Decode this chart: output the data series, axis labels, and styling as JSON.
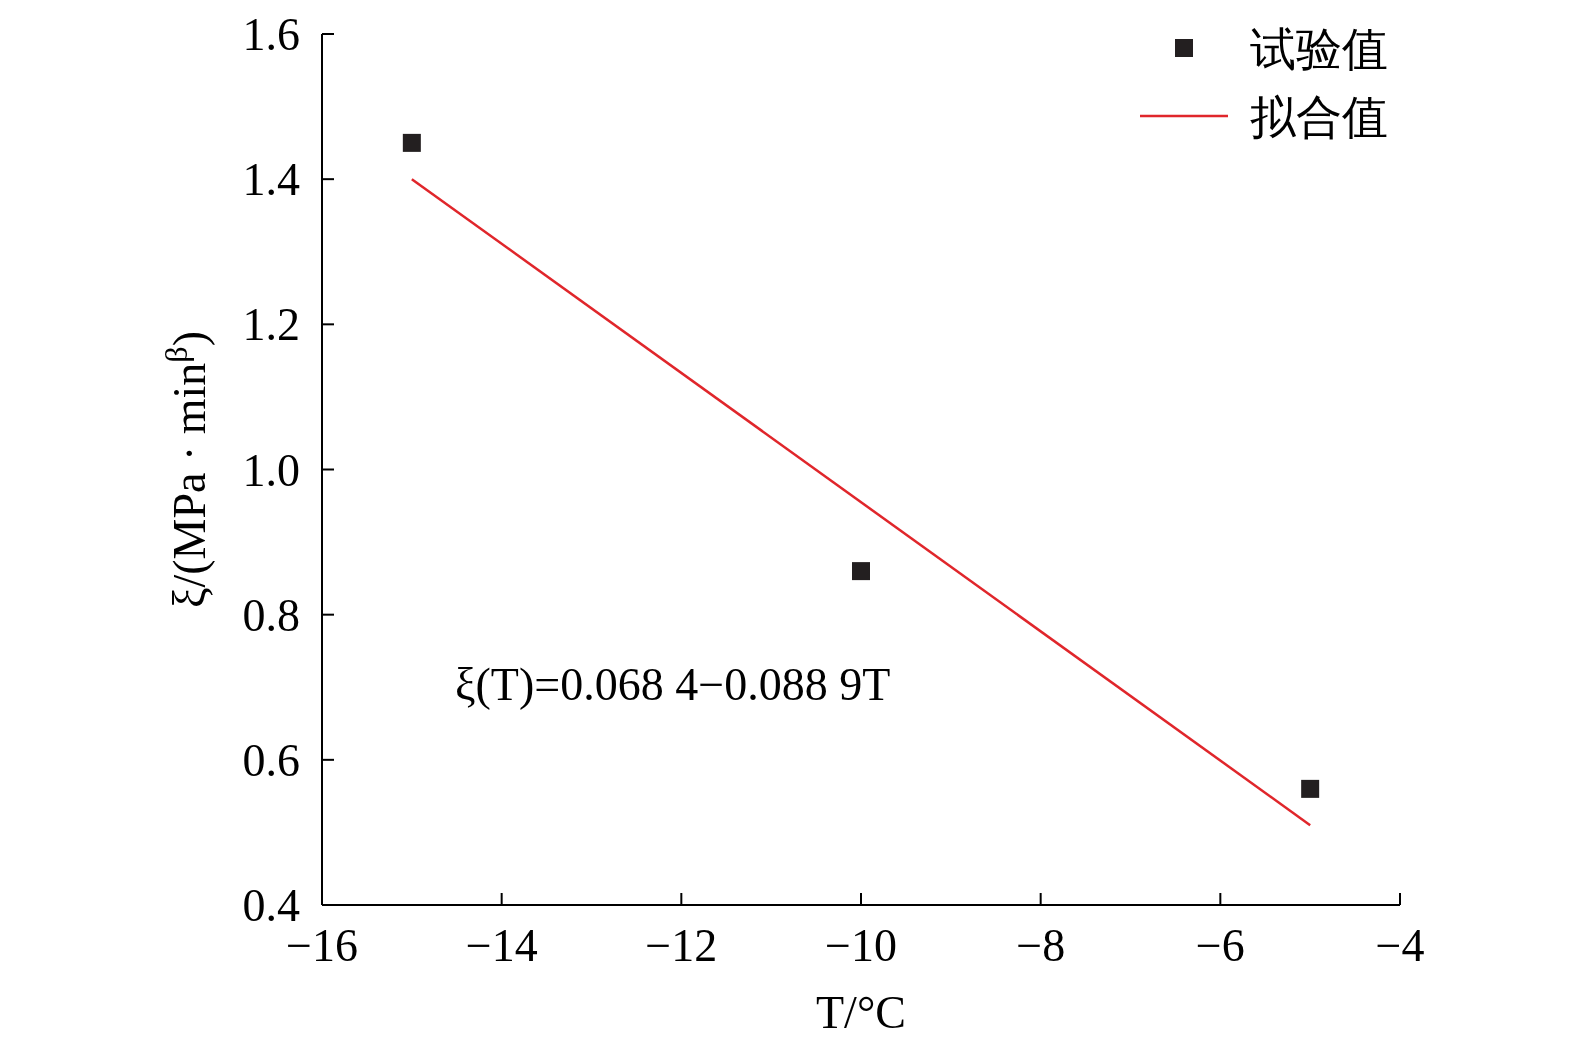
{
  "chart_data": {
    "type": "scatter",
    "xlabel": "T/°C",
    "ylabel": "ξ/(MPa · min$^{β}$)",
    "xlim": [
      -16,
      -4
    ],
    "ylim": [
      0.4,
      1.6
    ],
    "xticks": [
      {
        "value": -16,
        "label": "−16"
      },
      {
        "value": -14,
        "label": "−14"
      },
      {
        "value": -12,
        "label": "−12"
      },
      {
        "value": -10,
        "label": "−10"
      },
      {
        "value": -8,
        "label": "−8"
      },
      {
        "value": -6,
        "label": "−6"
      },
      {
        "value": -4,
        "label": "−4"
      }
    ],
    "yticks": [
      0.4,
      0.6,
      0.8,
      {
        "value": 1.0,
        "label": "1.0"
      },
      1.2,
      1.4,
      1.6
    ],
    "legend": "top right",
    "grid": false,
    "annotations": [
      "ξ(T)=0.068 4−0.088 9T"
    ],
    "series": [
      {
        "name": "试验值",
        "marker": "square",
        "color": "#231f20",
        "x": [
          -15,
          -10,
          -5
        ],
        "values": [
          1.45,
          0.86,
          0.56
        ]
      },
      {
        "name": "拟合值",
        "type": "line",
        "marker": "none",
        "line_style": "solid",
        "color": "#e0262b",
        "x": [
          -15,
          -5
        ],
        "values": [
          1.4,
          0.51
        ]
      }
    ]
  }
}
